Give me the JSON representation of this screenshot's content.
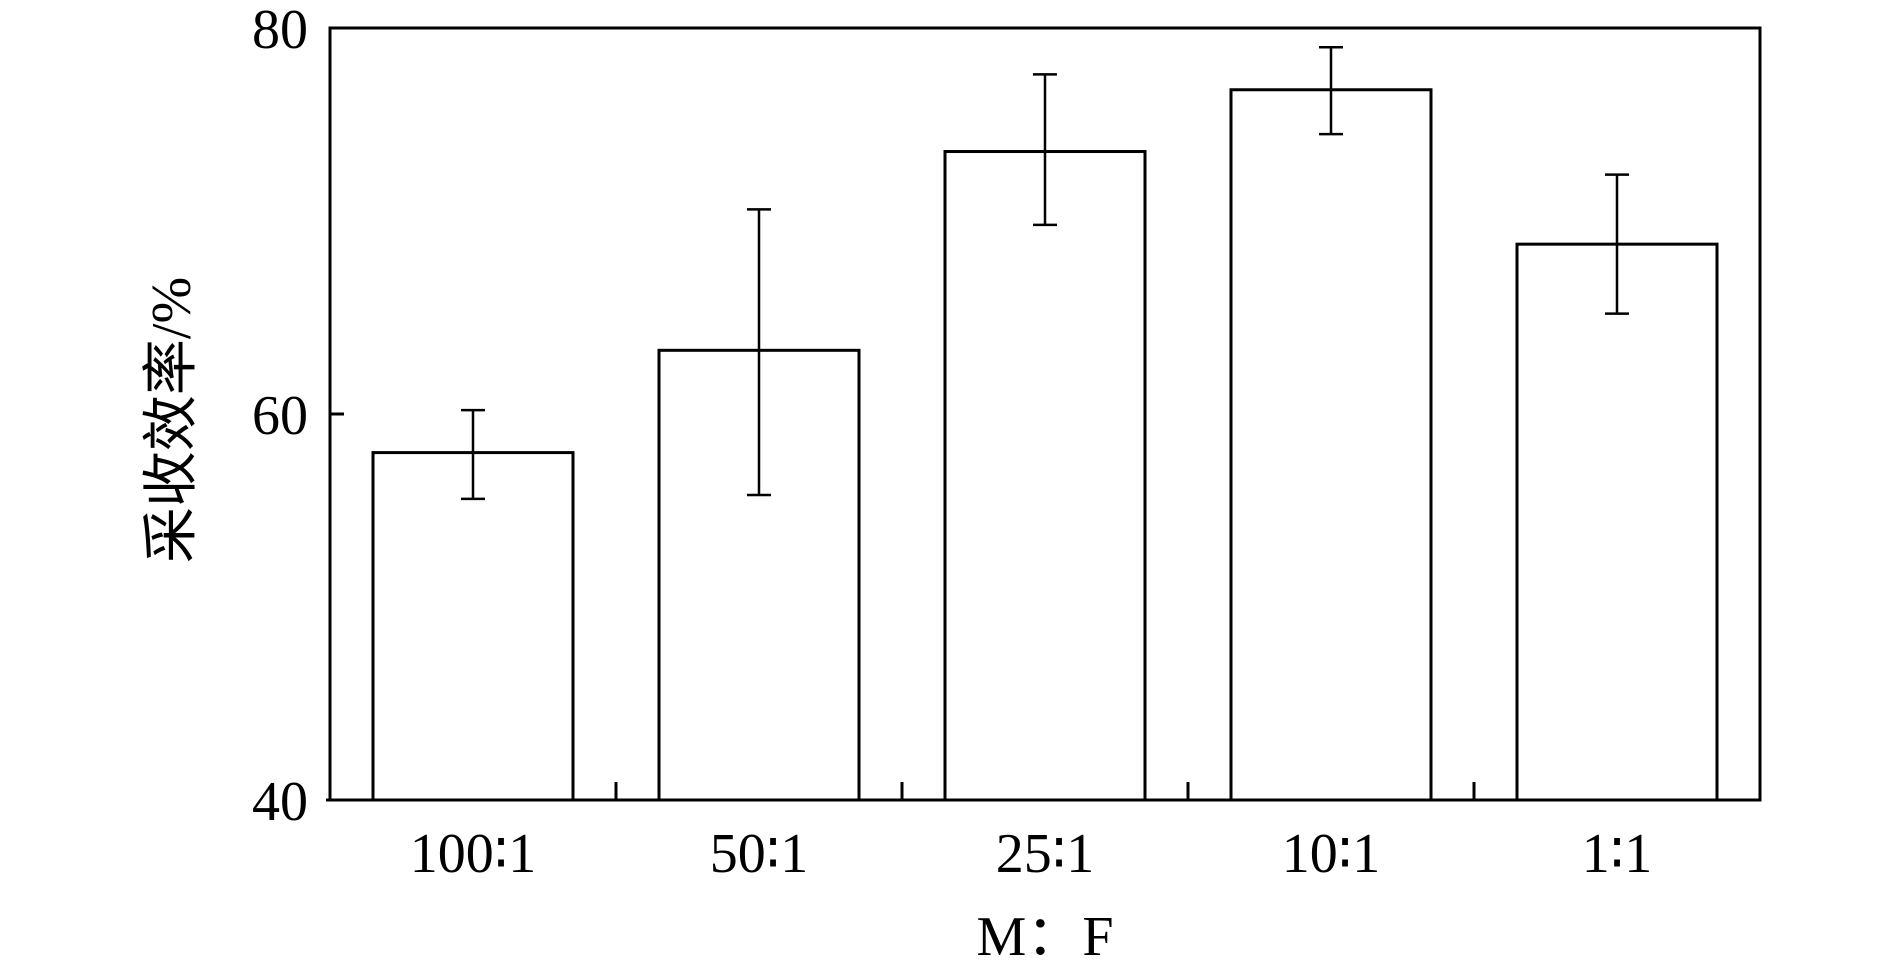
{
  "chart_data": {
    "type": "bar",
    "title": "",
    "xlabel": "M：F",
    "ylabel": "采收效率/%",
    "categories": [
      "100∶1",
      "50∶1",
      "25∶1",
      "10∶1",
      "1∶1"
    ],
    "values": [
      58.0,
      63.3,
      73.6,
      76.8,
      68.8
    ],
    "error_bars": [
      [
        55.6,
        60.2
      ],
      [
        55.8,
        70.6
      ],
      [
        69.8,
        77.6
      ],
      [
        74.5,
        79.0
      ],
      [
        65.2,
        72.4
      ]
    ],
    "ylim": [
      40,
      80
    ],
    "yticks": [
      "40",
      "60",
      "80"
    ],
    "grid": false,
    "legend": "none",
    "colors": {
      "bar_fill": "#ffffff",
      "bar_stroke": "#000000",
      "axis": "#000000"
    }
  }
}
